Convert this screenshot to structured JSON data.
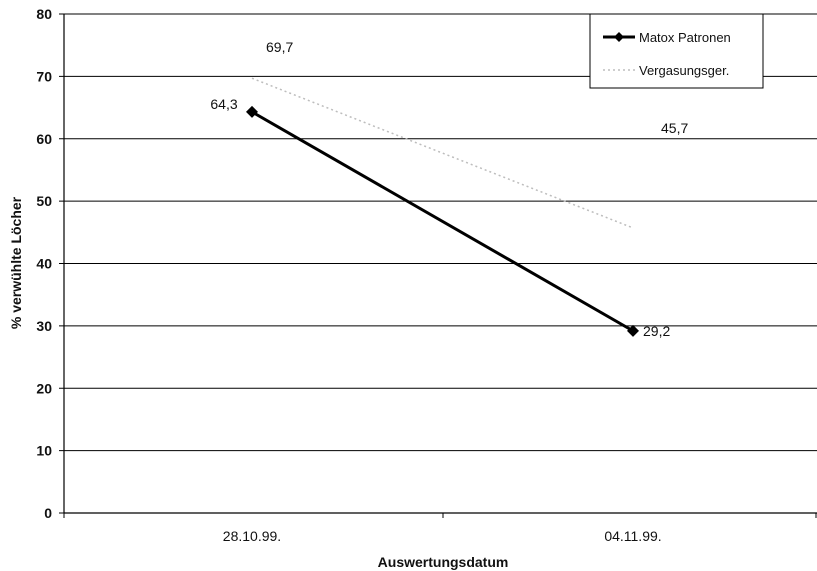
{
  "chart_data": {
    "type": "line",
    "categories": [
      "28.10.99.",
      "04.11.99."
    ],
    "series": [
      {
        "name": "Matox Patronen",
        "values": [
          64.3,
          29.2
        ],
        "labels": [
          "64,3",
          "29,2"
        ],
        "color": "#000000",
        "marker": "diamond"
      },
      {
        "name": "Vergasungsger.",
        "values": [
          69.7,
          45.7
        ],
        "labels": [
          "69,7",
          "45,7"
        ],
        "color": "#bdbdbd",
        "marker": "none"
      }
    ],
    "xlabel": "Auswertungsdatum",
    "ylabel": "% verwühlte Löcher",
    "ylim": [
      0,
      80
    ],
    "yticks": [
      0,
      10,
      20,
      30,
      40,
      50,
      60,
      70,
      80
    ],
    "grid": true,
    "legend_position": "top-right"
  }
}
